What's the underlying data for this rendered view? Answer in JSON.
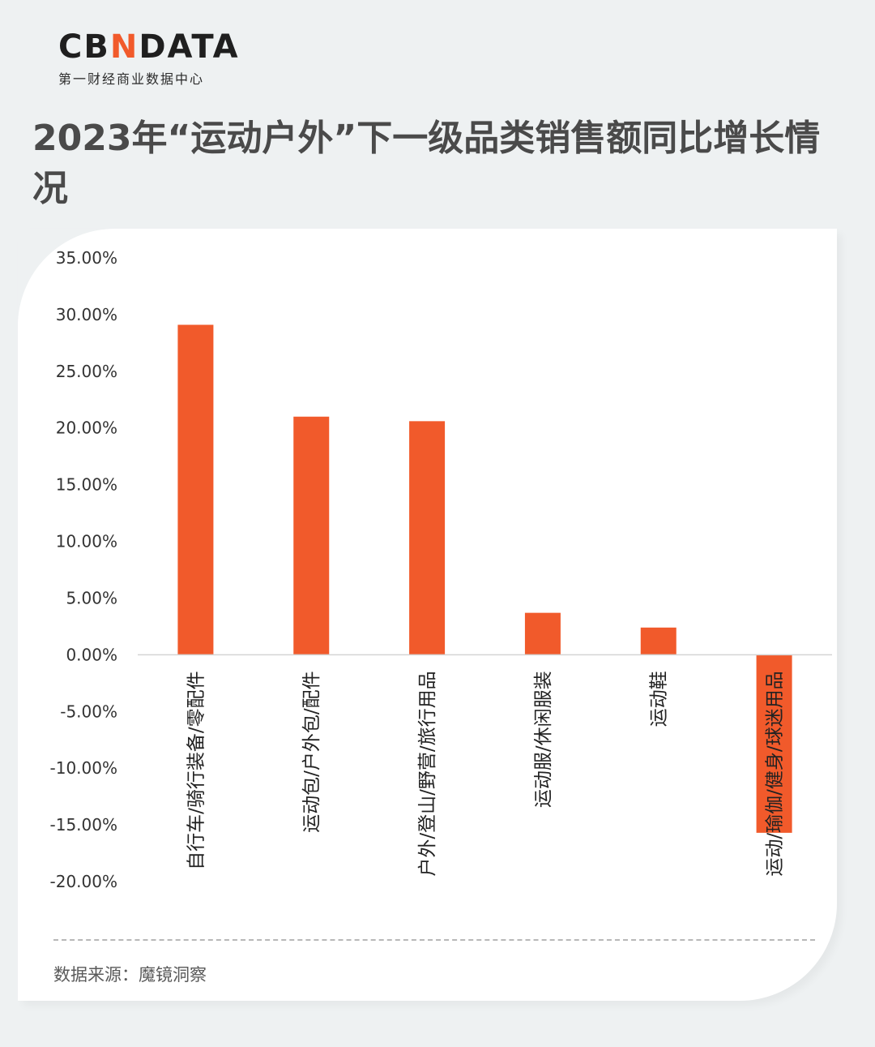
{
  "brand": {
    "logo_prefix": "CB",
    "logo_n": "N",
    "logo_suffix": "DATA",
    "subtitle": "第一财经商业数据中心",
    "accent": "#f15a2b"
  },
  "title": "2023年“运动户外”下一级品类销售额同比增长情况",
  "source": "数据来源：魔镜洞察",
  "chart_data": {
    "type": "bar",
    "categories": [
      "自行车/骑行装备/零配件",
      "运动包/户外包/配件",
      "户外/登山/野营/旅行用品",
      "运动服/休闲服装",
      "运动鞋",
      "运动/瑜伽/健身/球迷用品"
    ],
    "values": [
      29.1,
      21.0,
      20.6,
      3.7,
      2.4,
      -15.7
    ],
    "ylim": [
      -20,
      35
    ],
    "yticks": [
      "35.00%",
      "30.00%",
      "25.00%",
      "20.00%",
      "15.00%",
      "10.00%",
      "5.00%",
      "0.00%",
      "-5.00%",
      "-10.00%",
      "-15.00%",
      "-20.00%"
    ],
    "bar_color": "#f15a2b",
    "grid": false
  }
}
